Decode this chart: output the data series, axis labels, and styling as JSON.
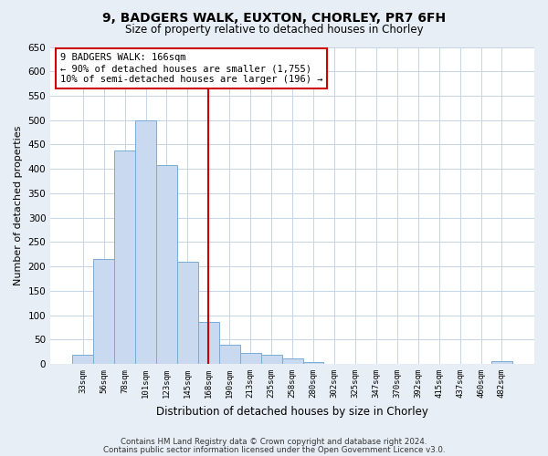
{
  "title": "9, BADGERS WALK, EUXTON, CHORLEY, PR7 6FH",
  "subtitle": "Size of property relative to detached houses in Chorley",
  "xlabel": "Distribution of detached houses by size in Chorley",
  "ylabel": "Number of detached properties",
  "bin_labels": [
    "33sqm",
    "56sqm",
    "78sqm",
    "101sqm",
    "123sqm",
    "145sqm",
    "168sqm",
    "190sqm",
    "213sqm",
    "235sqm",
    "258sqm",
    "280sqm",
    "302sqm",
    "325sqm",
    "347sqm",
    "370sqm",
    "392sqm",
    "415sqm",
    "437sqm",
    "460sqm",
    "482sqm"
  ],
  "bar_heights": [
    18,
    215,
    438,
    500,
    408,
    210,
    87,
    40,
    22,
    18,
    12,
    4,
    0,
    0,
    0,
    0,
    0,
    0,
    0,
    0,
    5
  ],
  "bar_color": "#c9daf0",
  "bar_edge_color": "#7aaad4",
  "vline_x_index": 6,
  "vline_color": "#cc0000",
  "annotation_title": "9 BADGERS WALK: 166sqm",
  "annotation_line1": "← 90% of detached houses are smaller (1,755)",
  "annotation_line2": "10% of semi-detached houses are larger (196) →",
  "annotation_box_edge_color": "#cc0000",
  "ylim": [
    0,
    650
  ],
  "yticks": [
    0,
    50,
    100,
    150,
    200,
    250,
    300,
    350,
    400,
    450,
    500,
    550,
    600,
    650
  ],
  "footnote1": "Contains HM Land Registry data © Crown copyright and database right 2024.",
  "footnote2": "Contains public sector information licensed under the Open Government Licence v3.0.",
  "background_color": "#e8eef5",
  "plot_bg_color": "#ffffff",
  "grid_color": "#c5d5e8"
}
